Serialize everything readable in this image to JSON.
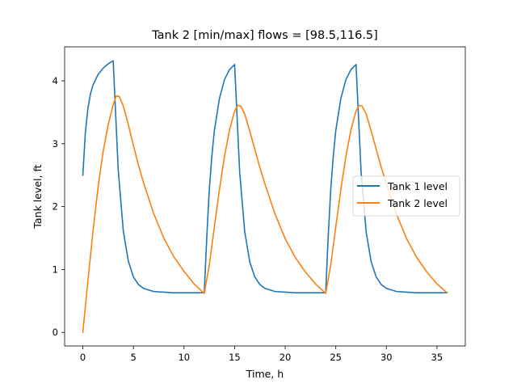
{
  "chart_data": {
    "type": "line",
    "title": "Tank 2 [min/max] flows = [98.5,116.5]",
    "xlabel": "Time, h",
    "ylabel": "Tank level, ft",
    "xlim": [
      -1.8,
      37.8
    ],
    "ylim": [
      -0.216,
      4.54
    ],
    "xticks": [
      0,
      5,
      10,
      15,
      20,
      25,
      30,
      35
    ],
    "yticks": [
      0,
      1,
      2,
      3,
      4
    ],
    "grid": false,
    "legend": {
      "placement": "center-right",
      "entries": [
        "Tank 1 level",
        "Tank 2 level"
      ]
    },
    "series": [
      {
        "name": "Tank 1 level",
        "color": "#1f77b4",
        "x": [
          0,
          0.25,
          0.5,
          0.75,
          1,
          1.5,
          2,
          2.5,
          3,
          3.5,
          4,
          4.5,
          5,
          5.5,
          6,
          7,
          8,
          9,
          10,
          11,
          12,
          12.25,
          12.5,
          12.75,
          13,
          13.5,
          14,
          14.5,
          15,
          15.5,
          16,
          16.5,
          17,
          17.5,
          18,
          19,
          20,
          21,
          22,
          23,
          24,
          24.25,
          24.5,
          24.75,
          25,
          25.5,
          26,
          26.5,
          27,
          27.5,
          28,
          28.5,
          29,
          29.5,
          30,
          31,
          32,
          33,
          34,
          35,
          36
        ],
        "y": [
          2.5,
          3.18,
          3.56,
          3.79,
          3.93,
          4.1,
          4.2,
          4.27,
          4.32,
          2.58,
          1.61,
          1.13,
          0.88,
          0.76,
          0.7,
          0.65,
          0.64,
          0.63,
          0.63,
          0.63,
          0.63,
          1.52,
          2.27,
          2.8,
          3.21,
          3.72,
          4.02,
          4.18,
          4.26,
          2.55,
          1.6,
          1.12,
          0.88,
          0.76,
          0.7,
          0.65,
          0.64,
          0.63,
          0.63,
          0.63,
          0.63,
          1.52,
          2.27,
          2.8,
          3.21,
          3.72,
          4.02,
          4.18,
          4.26,
          2.55,
          1.6,
          1.12,
          0.88,
          0.76,
          0.7,
          0.65,
          0.64,
          0.63,
          0.63,
          0.63,
          0.63
        ]
      },
      {
        "name": "Tank 2 level",
        "color": "#ff7f0e",
        "x": [
          0,
          0.5,
          1,
          1.5,
          2,
          2.5,
          3,
          3.3,
          3.6,
          4,
          4.5,
          5,
          5.5,
          6,
          7,
          8,
          9,
          10,
          11,
          12,
          12.5,
          13,
          13.5,
          14,
          14.5,
          15,
          15.3,
          15.6,
          16,
          16.5,
          17,
          17.5,
          18,
          19,
          20,
          21,
          22,
          23,
          24,
          24.5,
          25,
          25.5,
          26,
          26.5,
          27,
          27.3,
          27.6,
          28,
          28.5,
          29,
          29.5,
          30,
          31,
          32,
          33,
          34,
          35,
          36
        ],
        "y": [
          0,
          0.82,
          1.6,
          2.3,
          2.87,
          3.3,
          3.62,
          3.76,
          3.75,
          3.6,
          3.3,
          2.97,
          2.66,
          2.38,
          1.89,
          1.5,
          1.2,
          0.97,
          0.77,
          0.62,
          1.07,
          1.68,
          2.27,
          2.8,
          3.22,
          3.52,
          3.61,
          3.6,
          3.47,
          3.2,
          2.91,
          2.62,
          2.36,
          1.88,
          1.49,
          1.19,
          0.96,
          0.77,
          0.62,
          1.07,
          1.68,
          2.27,
          2.8,
          3.22,
          3.52,
          3.61,
          3.6,
          3.47,
          3.2,
          2.91,
          2.62,
          2.36,
          1.88,
          1.49,
          1.19,
          0.96,
          0.77,
          0.63
        ]
      }
    ]
  }
}
